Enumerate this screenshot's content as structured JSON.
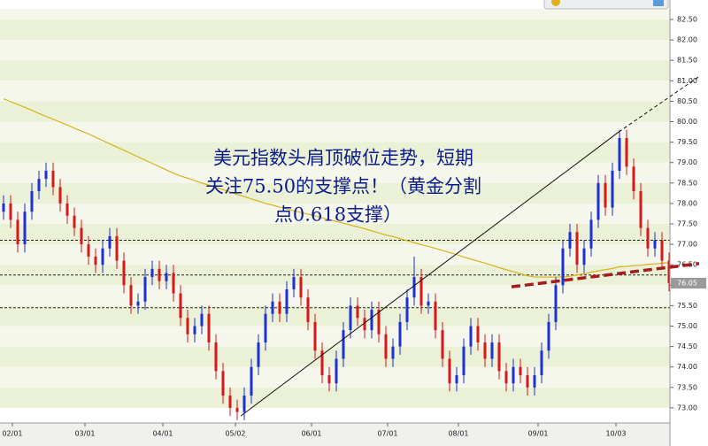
{
  "chart_data": {
    "type": "candlestick",
    "annotation": [
      "美元指数头肩顶破位走势，短期",
      "关注75.50的支撑点！（黄金分割",
      "点0.618支撑）"
    ],
    "open": [
      77.8,
      78.0,
      77.6,
      77.0,
      77.8,
      78.3,
      78.6,
      78.8,
      78.4,
      78.0,
      77.7,
      77.4,
      77.0,
      76.7,
      76.5,
      76.9,
      77.2,
      76.6,
      76.0,
      75.5,
      75.6,
      76.2,
      76.4,
      76.1,
      76.3,
      75.8,
      75.2,
      74.8,
      75.0,
      75.3,
      74.6,
      73.9,
      73.3,
      73.0,
      72.9,
      73.3,
      74.0,
      74.6,
      75.3,
      75.6,
      75.3,
      75.9,
      76.2,
      75.7,
      75.1,
      74.4,
      73.8,
      73.6,
      74.2,
      74.9,
      75.5,
      75.2,
      74.9,
      75.4,
      74.8,
      74.2,
      74.5,
      75.1,
      75.7,
      76.2,
      75.5,
      75.6,
      74.9,
      74.2,
      73.6,
      73.8,
      74.5,
      75.0,
      74.6,
      74.2,
      74.6,
      73.9,
      73.6,
      74.0,
      73.8,
      73.5,
      73.8,
      74.4,
      75.1,
      76.0,
      76.9,
      77.3,
      76.5,
      76.9,
      77.6,
      78.5,
      77.9,
      78.8,
      79.6,
      78.9,
      78.3,
      77.4,
      76.9,
      77.1,
      76.6
    ],
    "high": [
      78.2,
      78.2,
      77.8,
      78.0,
      78.5,
      78.8,
      79.0,
      79.0,
      78.6,
      78.2,
      77.9,
      77.6,
      77.2,
      76.9,
      77.1,
      77.4,
      77.4,
      76.8,
      76.2,
      75.8,
      76.4,
      76.6,
      76.6,
      76.5,
      76.5,
      76.0,
      75.4,
      75.2,
      75.5,
      75.5,
      74.8,
      74.1,
      73.5,
      73.2,
      73.5,
      74.2,
      74.8,
      75.5,
      75.8,
      75.8,
      76.1,
      76.4,
      76.4,
      75.9,
      75.3,
      74.6,
      74.0,
      74.4,
      75.1,
      75.7,
      75.7,
      75.4,
      75.6,
      75.6,
      75.0,
      74.7,
      75.3,
      75.9,
      76.7,
      76.4,
      75.8,
      75.8,
      75.1,
      74.4,
      74.0,
      74.7,
      75.2,
      75.2,
      74.8,
      74.8,
      74.8,
      74.1,
      74.2,
      74.2,
      74.0,
      74.0,
      74.6,
      75.3,
      76.2,
      77.1,
      77.5,
      77.5,
      77.1,
      77.8,
      78.7,
      78.7,
      79.0,
      79.8,
      79.8,
      79.1,
      78.5,
      77.6,
      77.3,
      77.3,
      76.8
    ],
    "low": [
      77.6,
      77.4,
      76.8,
      76.8,
      77.6,
      78.1,
      78.4,
      78.2,
      77.8,
      77.5,
      77.2,
      76.8,
      76.5,
      76.3,
      76.3,
      76.7,
      76.4,
      75.8,
      75.3,
      75.3,
      75.4,
      76.0,
      75.9,
      75.9,
      75.6,
      75.0,
      74.6,
      74.6,
      74.8,
      74.4,
      73.7,
      73.1,
      72.8,
      72.7,
      72.7,
      73.1,
      73.8,
      74.4,
      75.1,
      75.1,
      75.1,
      75.7,
      75.5,
      74.9,
      74.2,
      73.6,
      73.4,
      73.4,
      74.0,
      74.7,
      75.0,
      74.7,
      74.7,
      74.6,
      74.0,
      74.0,
      74.3,
      74.9,
      75.5,
      75.3,
      75.3,
      74.7,
      74.0,
      73.4,
      73.4,
      73.6,
      74.3,
      74.4,
      74.0,
      74.0,
      73.7,
      73.4,
      73.4,
      73.6,
      73.3,
      73.3,
      73.6,
      74.2,
      74.9,
      75.8,
      76.7,
      76.3,
      76.3,
      76.7,
      77.4,
      77.7,
      77.7,
      78.6,
      78.7,
      78.1,
      77.2,
      76.7,
      76.7,
      76.4,
      75.85
    ],
    "close": [
      78.0,
      77.6,
      77.0,
      77.8,
      78.3,
      78.6,
      78.8,
      78.4,
      78.0,
      77.7,
      77.4,
      77.0,
      76.7,
      76.5,
      76.9,
      77.2,
      76.6,
      76.0,
      75.5,
      75.6,
      76.2,
      76.4,
      76.1,
      76.3,
      75.8,
      75.2,
      74.8,
      75.0,
      75.3,
      74.6,
      73.9,
      73.3,
      73.0,
      72.9,
      73.3,
      74.0,
      74.6,
      75.3,
      75.6,
      75.3,
      75.9,
      76.2,
      75.7,
      75.1,
      74.4,
      73.8,
      73.6,
      74.2,
      74.9,
      75.5,
      75.2,
      74.9,
      75.4,
      74.8,
      74.2,
      74.5,
      75.1,
      75.7,
      76.2,
      75.5,
      75.6,
      74.9,
      74.2,
      73.6,
      73.8,
      74.5,
      75.0,
      74.6,
      74.2,
      74.6,
      73.9,
      73.6,
      74.0,
      73.8,
      73.5,
      73.8,
      74.4,
      75.1,
      76.0,
      76.9,
      77.3,
      76.5,
      76.9,
      77.6,
      78.5,
      77.9,
      78.8,
      79.6,
      78.9,
      78.3,
      77.4,
      76.9,
      77.1,
      76.6,
      76.05
    ],
    "moving_average": [
      80.56,
      80.49,
      80.42,
      80.35,
      80.28,
      80.2,
      80.13,
      80.06,
      79.99,
      79.92,
      79.84,
      79.77,
      79.7,
      79.62,
      79.54,
      79.46,
      79.38,
      79.3,
      79.22,
      79.14,
      79.06,
      78.98,
      78.9,
      78.82,
      78.74,
      78.67,
      78.62,
      78.56,
      78.5,
      78.45,
      78.39,
      78.34,
      78.28,
      78.22,
      78.17,
      78.11,
      78.06,
      78.0,
      77.96,
      77.91,
      77.87,
      77.82,
      77.78,
      77.74,
      77.69,
      77.65,
      77.6,
      77.56,
      77.52,
      77.47,
      77.43,
      77.38,
      77.33,
      77.28,
      77.23,
      77.19,
      77.14,
      77.09,
      77.04,
      76.99,
      76.95,
      76.9,
      76.85,
      76.8,
      76.75,
      76.69,
      76.64,
      76.59,
      76.54,
      76.49,
      76.43,
      76.38,
      76.33,
      76.28,
      76.23,
      76.2,
      76.2,
      76.2,
      76.2,
      76.2,
      76.22,
      76.25,
      76.28,
      76.32,
      76.35,
      76.38,
      76.41,
      76.45,
      76.46,
      76.48,
      76.49,
      76.51,
      76.52,
      76.54,
      76.55
    ],
    "color_up": "#1e2fd6",
    "color_down": "#d81818",
    "ma_color": "#d9b21a",
    "reference_lines": [
      77.1,
      76.25,
      75.45
    ],
    "trend_line": {
      "start": [
        33.5,
        72.8
      ],
      "end": [
        86.9,
        79.75
      ],
      "extension": [
        98.2,
        81.1
      ],
      "color": "#111111"
    },
    "neckline": {
      "start": [
        71.75,
        75.96
      ],
      "end": [
        98.25,
        76.53
      ],
      "color": "#a51c1c"
    },
    "xlim": [
      -0.5,
      94.125
    ],
    "ylim": [
      72.63,
      82.76
    ],
    "xticks": [
      {
        "value": 1.25,
        "label": "02/01"
      },
      {
        "value": 11.5,
        "label": "03/01"
      },
      {
        "value": 22.5,
        "label": "04/01"
      },
      {
        "value": 32.75,
        "label": "05/02"
      },
      {
        "value": 43.5,
        "label": "06/01"
      },
      {
        "value": 54.25,
        "label": "07/01"
      },
      {
        "value": 64.25,
        "label": "08/01"
      },
      {
        "value": 75.5,
        "label": "09/01"
      },
      {
        "value": 86.5,
        "label": "10/03"
      }
    ],
    "yticks": [
      {
        "value": 73,
        "label": "73.00"
      },
      {
        "value": 73.5,
        "label": "73.50"
      },
      {
        "value": 74,
        "label": "74.00"
      },
      {
        "value": 74.5,
        "label": "74.50"
      },
      {
        "value": 75,
        "label": "75.00"
      },
      {
        "value": 75.5,
        "label": "75.50"
      },
      {
        "value": 76,
        "label": "76.00"
      },
      {
        "value": 76.5,
        "label": "76.50"
      },
      {
        "value": 77,
        "label": "77.00"
      },
      {
        "value": 77.5,
        "label": "77.50"
      },
      {
        "value": 78,
        "label": "78.00"
      },
      {
        "value": 78.5,
        "label": "78.50"
      },
      {
        "value": 79,
        "label": "79.00"
      },
      {
        "value": 79.5,
        "label": "79.50"
      },
      {
        "value": 80,
        "label": "80.00"
      },
      {
        "value": 80.5,
        "label": "80.50"
      },
      {
        "value": 81,
        "label": "81.00"
      },
      {
        "value": 81.5,
        "label": "81.50"
      },
      {
        "value": 82,
        "label": "82.00"
      },
      {
        "value": 82.5,
        "label": "82.50"
      }
    ]
  }
}
